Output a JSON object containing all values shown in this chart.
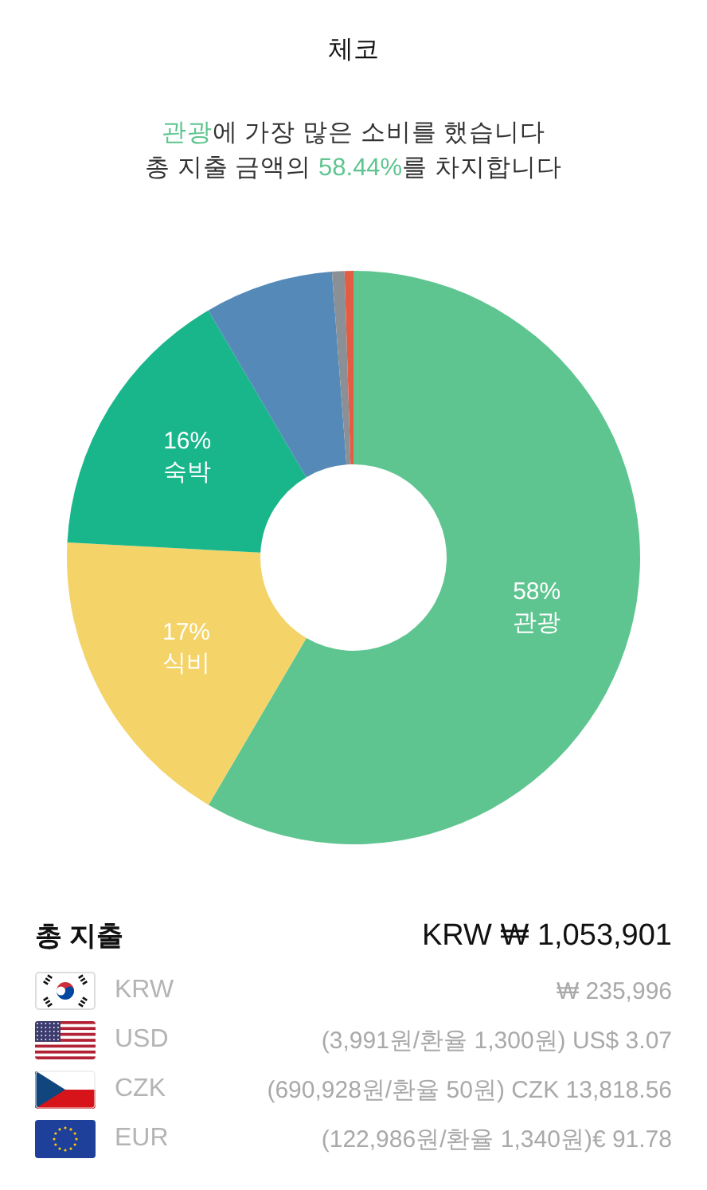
{
  "chart_data": [
    {
      "type": "donut",
      "title": "체코",
      "subtitle": "관광에 가장 많은 소비를 했습니다\n총 지출 금액의 58.44%를 차지합니다",
      "categories": [
        "관광",
        "식비",
        "숙박",
        null,
        null,
        null
      ],
      "values": [
        58.44,
        17.4,
        15.7,
        7.26,
        0.7,
        0.5
      ],
      "value_labels": [
        "58%",
        "17%",
        "16%",
        null,
        null,
        null
      ],
      "colors": [
        "#5ec590",
        "#f4d369",
        "#19b68b",
        "#558ab8",
        "#8b9096",
        "#e35c44"
      ]
    },
    {
      "type": "other",
      "title": "총 지출",
      "categories": [
        "KRW",
        "USD",
        "CZK",
        "EUR"
      ],
      "annotations": [
        "KRW ₩ 1,053,901",
        "₩ 235,996",
        "(3,991원/환율 1,300원) US$ 3.07",
        "(690,928원/환율 50원) CZK 13,818.56",
        "(122,986원/환율 1,340원)€ 91.78"
      ]
    }
  ]
}
